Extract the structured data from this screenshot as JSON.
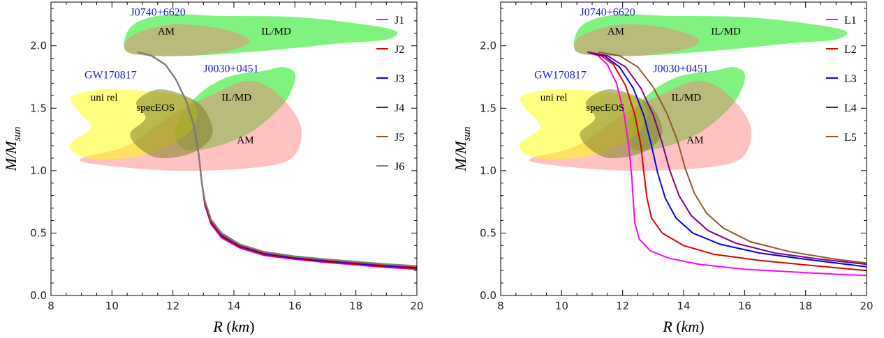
{
  "chart_data": [
    {
      "type": "line",
      "xlabel": "R (km)",
      "ylabel": "M/M_sun",
      "xlim": [
        8,
        20
      ],
      "ylim": [
        0,
        2.35
      ],
      "xticks": [
        "8",
        "10",
        "12",
        "14",
        "16",
        "18",
        "20"
      ],
      "yticks": [
        "0.0",
        "0.5",
        "1.0",
        "1.5",
        "2.0"
      ],
      "legend_position": "right",
      "annotations": {
        "J0740": "J0740+6620",
        "J0030": "J0030+0451",
        "GW": "GW170817",
        "AM_top": "AM",
        "ILMD_top": "IL/MD",
        "ILMD_mid": "IL/MD",
        "AM_mid": "AM",
        "unirel": "uni rel",
        "specEOS": "specEOS"
      },
      "series": [
        {
          "name": "J1",
          "color": "#ff00ff",
          "x": [
            10.85,
            11.3,
            11.75,
            12.1,
            12.45,
            12.7,
            12.85,
            12.95,
            13.05,
            13.25,
            13.6,
            14.2,
            15.0,
            16.0,
            17.0,
            18.0,
            19.0,
            20.0
          ],
          "y": [
            1.95,
            1.92,
            1.85,
            1.73,
            1.55,
            1.35,
            1.12,
            0.9,
            0.72,
            0.57,
            0.46,
            0.38,
            0.32,
            0.29,
            0.265,
            0.245,
            0.225,
            0.21
          ]
        },
        {
          "name": "J2",
          "color": "#e00000",
          "x": [
            10.85,
            11.3,
            11.75,
            12.1,
            12.45,
            12.7,
            12.85,
            12.95,
            13.05,
            13.25,
            13.6,
            14.2,
            15.0,
            16.0,
            17.0,
            18.0,
            19.0,
            20.0
          ],
          "y": [
            1.95,
            1.92,
            1.85,
            1.73,
            1.55,
            1.35,
            1.12,
            0.9,
            0.73,
            0.58,
            0.47,
            0.385,
            0.325,
            0.293,
            0.27,
            0.25,
            0.23,
            0.215
          ]
        },
        {
          "name": "J3",
          "color": "#0000ee",
          "x": [
            10.85,
            11.3,
            11.75,
            12.1,
            12.45,
            12.7,
            12.85,
            12.95,
            13.05,
            13.25,
            13.6,
            14.2,
            15.0,
            16.0,
            17.0,
            18.0,
            19.0,
            20.0
          ],
          "y": [
            1.95,
            1.92,
            1.85,
            1.73,
            1.55,
            1.35,
            1.12,
            0.9,
            0.74,
            0.59,
            0.48,
            0.395,
            0.335,
            0.3,
            0.277,
            0.257,
            0.237,
            0.222
          ]
        },
        {
          "name": "J4",
          "color": "#800080",
          "x": [
            10.85,
            11.3,
            11.75,
            12.1,
            12.45,
            12.7,
            12.85,
            12.95,
            13.05,
            13.25,
            13.6,
            14.2,
            15.0,
            16.0,
            17.0,
            18.0,
            19.0,
            20.0
          ],
          "y": [
            1.95,
            1.92,
            1.85,
            1.73,
            1.55,
            1.35,
            1.12,
            0.9,
            0.745,
            0.595,
            0.485,
            0.4,
            0.34,
            0.305,
            0.282,
            0.262,
            0.242,
            0.227
          ]
        },
        {
          "name": "J5",
          "color": "#8b5a2b",
          "x": [
            10.85,
            11.3,
            11.75,
            12.1,
            12.45,
            12.7,
            12.85,
            12.95,
            13.05,
            13.25,
            13.6,
            14.2,
            15.0,
            16.0,
            17.0,
            18.0,
            19.0,
            20.0
          ],
          "y": [
            1.95,
            1.92,
            1.85,
            1.73,
            1.55,
            1.35,
            1.12,
            0.9,
            0.75,
            0.6,
            0.49,
            0.405,
            0.345,
            0.31,
            0.287,
            0.267,
            0.247,
            0.232
          ]
        },
        {
          "name": "J6",
          "color": "#808080",
          "x": [
            10.85,
            11.3,
            11.75,
            12.1,
            12.45,
            12.7,
            12.85,
            12.95,
            13.05,
            13.25,
            13.6,
            14.2,
            15.0,
            16.0,
            17.0,
            18.0,
            19.0,
            20.0
          ],
          "y": [
            1.95,
            1.92,
            1.85,
            1.73,
            1.55,
            1.35,
            1.12,
            0.9,
            0.76,
            0.61,
            0.5,
            0.41,
            0.35,
            0.315,
            0.292,
            0.272,
            0.252,
            0.237
          ]
        }
      ]
    },
    {
      "type": "line",
      "xlabel": "R (km)",
      "ylabel": "M/M_sun",
      "xlim": [
        8,
        20
      ],
      "ylim": [
        0,
        2.35
      ],
      "xticks": [
        "8",
        "10",
        "12",
        "14",
        "16",
        "18",
        "20"
      ],
      "yticks": [
        "0.0",
        "0.5",
        "1.0",
        "1.5",
        "2.0"
      ],
      "legend_position": "right",
      "annotations": {
        "J0740": "J0740+6620",
        "J0030": "J0030+0451",
        "GW": "GW170817",
        "AM_top": "AM",
        "ILMD_top": "IL/MD",
        "ILMD_mid": "IL/MD",
        "AM_mid": "AM",
        "unirel": "uni rel",
        "specEOS": "specEOS"
      },
      "series": [
        {
          "name": "L1",
          "color": "#ff00ff",
          "x": [
            10.85,
            11.2,
            11.5,
            11.8,
            12.05,
            12.2,
            12.3,
            12.35,
            12.4,
            12.55,
            12.9,
            13.5,
            14.5,
            16.0,
            17.5,
            19.0,
            20.0
          ],
          "y": [
            1.95,
            1.92,
            1.85,
            1.7,
            1.45,
            1.2,
            0.95,
            0.75,
            0.58,
            0.45,
            0.36,
            0.3,
            0.25,
            0.21,
            0.19,
            0.17,
            0.16
          ]
        },
        {
          "name": "L2",
          "color": "#e00000",
          "x": [
            10.85,
            11.3,
            11.7,
            12.1,
            12.4,
            12.6,
            12.7,
            12.8,
            12.95,
            13.3,
            14.0,
            15.0,
            16.5,
            18.0,
            20.0
          ],
          "y": [
            1.95,
            1.92,
            1.85,
            1.68,
            1.45,
            1.2,
            0.98,
            0.78,
            0.62,
            0.5,
            0.4,
            0.33,
            0.28,
            0.245,
            0.2
          ]
        },
        {
          "name": "L3",
          "color": "#0000ee",
          "x": [
            10.85,
            11.4,
            11.9,
            12.35,
            12.7,
            12.95,
            13.15,
            13.4,
            13.75,
            14.3,
            15.2,
            16.5,
            18.0,
            20.0
          ],
          "y": [
            1.95,
            1.92,
            1.83,
            1.66,
            1.44,
            1.2,
            0.98,
            0.78,
            0.62,
            0.5,
            0.41,
            0.34,
            0.29,
            0.23
          ]
        },
        {
          "name": "L4",
          "color": "#800080",
          "x": [
            10.85,
            11.5,
            12.1,
            12.6,
            13.0,
            13.3,
            13.55,
            13.85,
            14.25,
            14.8,
            15.7,
            17.0,
            18.5,
            20.0
          ],
          "y": [
            1.95,
            1.92,
            1.83,
            1.66,
            1.45,
            1.22,
            1.0,
            0.8,
            0.64,
            0.52,
            0.42,
            0.34,
            0.29,
            0.25
          ]
        },
        {
          "name": "L5",
          "color": "#8b5a2b",
          "x": [
            11.2,
            11.9,
            12.5,
            13.0,
            13.45,
            13.8,
            14.05,
            14.35,
            14.75,
            15.3,
            16.2,
            17.5,
            19.0,
            20.0
          ],
          "y": [
            1.95,
            1.92,
            1.83,
            1.67,
            1.46,
            1.24,
            1.02,
            0.82,
            0.66,
            0.54,
            0.43,
            0.35,
            0.29,
            0.26
          ]
        }
      ]
    }
  ]
}
